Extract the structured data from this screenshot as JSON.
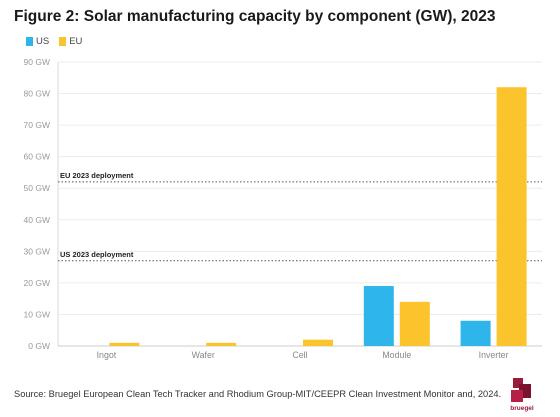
{
  "chart_data": {
    "type": "bar",
    "title": "Figure 2: Solar manufacturing capacity by component (GW), 2023",
    "categories": [
      "Ingot",
      "Wafer",
      "Cell",
      "Module",
      "Inverter"
    ],
    "series": [
      {
        "name": "US",
        "color": "#2eb5ea",
        "values": [
          0,
          0,
          0,
          19,
          8
        ]
      },
      {
        "name": "EU",
        "color": "#fcc42c",
        "values": [
          1,
          1,
          2,
          14,
          82
        ]
      }
    ],
    "ylim": [
      0,
      90
    ],
    "yticks": [
      0,
      10,
      20,
      30,
      40,
      50,
      60,
      70,
      80,
      90
    ],
    "y_tick_labels": [
      "0 GW",
      "10 GW",
      "20 GW",
      "30 GW",
      "40 GW",
      "50 GW",
      "60 GW",
      "70 GW",
      "80 GW",
      "90 GW"
    ],
    "reference_lines": [
      {
        "label": "EU 2023 deployment",
        "value": 52
      },
      {
        "label": "US 2023 deployment",
        "value": 27
      }
    ],
    "legend_position": "top-left",
    "grid": true,
    "source": "Source: Bruegel European Clean Tech Tracker and Rhodium Group-MIT/CEEPR Clean Investment Monitor and, 2024.",
    "logo_text": "bruegel"
  }
}
